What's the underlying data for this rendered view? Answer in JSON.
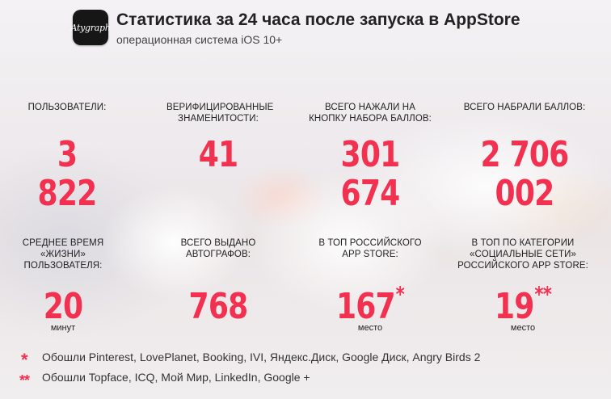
{
  "header": {
    "app_icon_text": "Atygraph",
    "title": "Статистика за 24 часа после запуска в AppStore",
    "subtitle": "операционная система iOS 10+"
  },
  "accent_color": "#f2304f",
  "stats_row1": [
    {
      "label": "ПОЛЬЗОВАТЕЛИ:",
      "value": "3 822"
    },
    {
      "label": "ВЕРИФИЦИРОВАННЫЕ ЗНАМЕНИТОСТИ:",
      "value": "41"
    },
    {
      "label": "ВСЕГО НАЖАЛИ НА КНОПКУ НАБОРА БАЛЛОВ:",
      "value": "301 674"
    },
    {
      "label": "ВСЕГО НАБРАЛИ БАЛЛОВ:",
      "value": "2 706 002"
    }
  ],
  "stats_row2": [
    {
      "label": "СРЕДНЕЕ ВРЕМЯ «ЖИЗНИ» ПОЛЬЗОВАТЕЛЯ:",
      "value": "20",
      "unit": "минут"
    },
    {
      "label": "ВСЕГО ВЫДАНО АВТОГРАФОВ:",
      "value": "768"
    },
    {
      "label": "В ТОП РОССИЙСКОГО APP STORE:",
      "value": "167",
      "marker": "*",
      "unit": "место"
    },
    {
      "label": "В ТОП ПО КАТЕГОРИИ «СОЦИАЛЬНЫЕ СЕТИ» РОССИЙСКОГО APP STORE:",
      "value": "19",
      "marker": "**",
      "unit": "место"
    }
  ],
  "footnotes": [
    {
      "marker": "*",
      "text": "Обошли Pinterest, LovePlanet, Booking, IVI,  Яндекс.Диск, Google Диск, Angry Birds 2"
    },
    {
      "marker": "**",
      "text": "Обошли Topface, ICQ, Мой Мир, LinkedIn, Google +"
    }
  ]
}
